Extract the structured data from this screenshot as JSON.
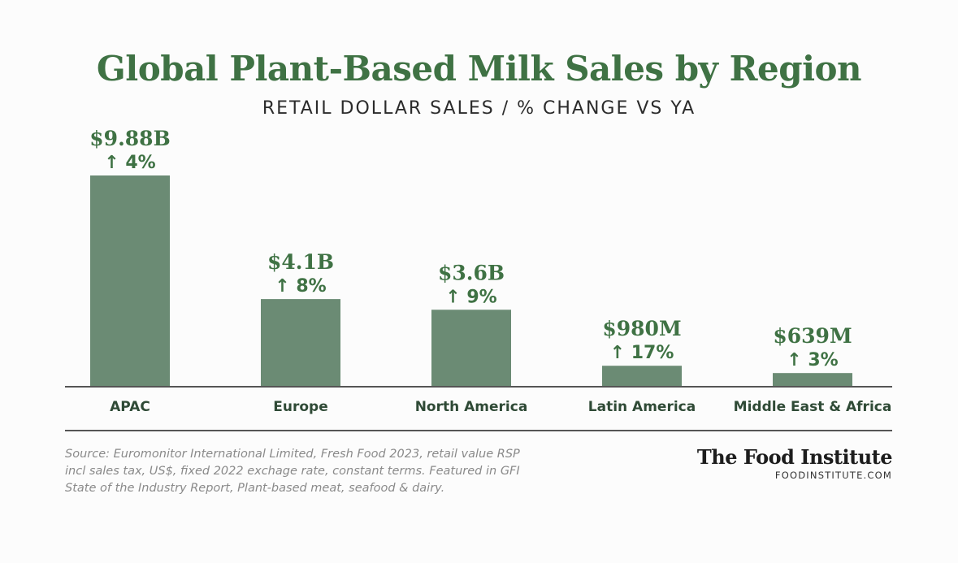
{
  "header": {
    "title": "Global Plant-Based Milk Sales by Region",
    "subtitle": "RETAIL DOLLAR SALES / % CHANGE VS YA"
  },
  "chart_data": {
    "type": "bar",
    "title": "Global Plant-Based Milk Sales by Region",
    "subtitle": "RETAIL DOLLAR SALES / % CHANGE VS YA",
    "categories": [
      "APAC",
      "Europe",
      "North America",
      "Latin America",
      "Middle East & Africa"
    ],
    "values": [
      9.88,
      4.1,
      3.6,
      0.98,
      0.639
    ],
    "unit": "billion USD",
    "value_labels": [
      "$9.88B",
      "$4.1B",
      "$3.6B",
      "$980M",
      "$639M"
    ],
    "change_labels": [
      "↑ 4%",
      "↑ 8%",
      "↑ 9%",
      "↑ 17%",
      "↑ 3%"
    ],
    "pct_change": [
      4,
      8,
      9,
      17,
      3
    ],
    "xlabel": "",
    "ylabel": "",
    "ylim": [
      0,
      9.88
    ],
    "grid": false,
    "bar_color": "#6b8b74",
    "label_color": "#3f7244"
  },
  "footer": {
    "source_lines": [
      "Source: Euromonitor International Limited, Fresh Food 2023, retail value RSP",
      "incl sales tax, US$, fixed 2022 exchage rate, constant terms. Featured in GFI",
      "State of the Industry Report, Plant-based meat, seafood & dairy."
    ],
    "brand_name": "The Food Institute",
    "brand_url": "FOODINSTITUTE.COM"
  }
}
